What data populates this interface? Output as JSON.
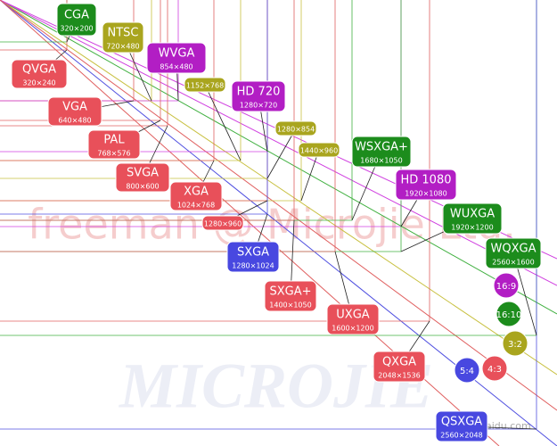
{
  "watermarks": [
    "freeman @ Microjie Ltd.",
    "MICROJIE",
    "jingyan.baidu.com"
  ],
  "boxes": [
    {
      "name": "CGA",
      "size": "320×200"
    },
    {
      "name": "QVGA",
      "size": "320×240"
    },
    {
      "name": "NTSC",
      "size": "720×480"
    },
    {
      "name": "VGA",
      "size": "640×480"
    },
    {
      "name": "WVGA",
      "size": "854×480"
    },
    {
      "size": "1152×768"
    },
    {
      "name": "HD 720",
      "size": "1280×720"
    },
    {
      "name": "PAL",
      "size": "768×576"
    },
    {
      "size": "1280×854"
    },
    {
      "size": "1440×960"
    },
    {
      "name": "SVGA",
      "size": "800×600"
    },
    {
      "name": "XGA",
      "size": "1024×768"
    },
    {
      "name": "WSXGA+",
      "size": "1680×1050"
    },
    {
      "name": "HD 1080",
      "size": "1920×1080"
    },
    {
      "size": "1280×960"
    },
    {
      "name": "SXGA",
      "size": "1280×1024"
    },
    {
      "name": "WUXGA",
      "size": "1920×1200"
    },
    {
      "name": "WQXGA",
      "size": "2560×1600"
    },
    {
      "name": "SXGA+",
      "size": "1400×1050"
    },
    {
      "name": "UXGA",
      "size": "1600×1200"
    },
    {
      "name": "QXGA",
      "size": "2048×1536"
    },
    {
      "name": "QSXGA",
      "size": "2560×2048"
    }
  ],
  "ratios": [
    "16:9",
    "16:10",
    "3:2",
    "5:4",
    "4:3"
  ]
}
